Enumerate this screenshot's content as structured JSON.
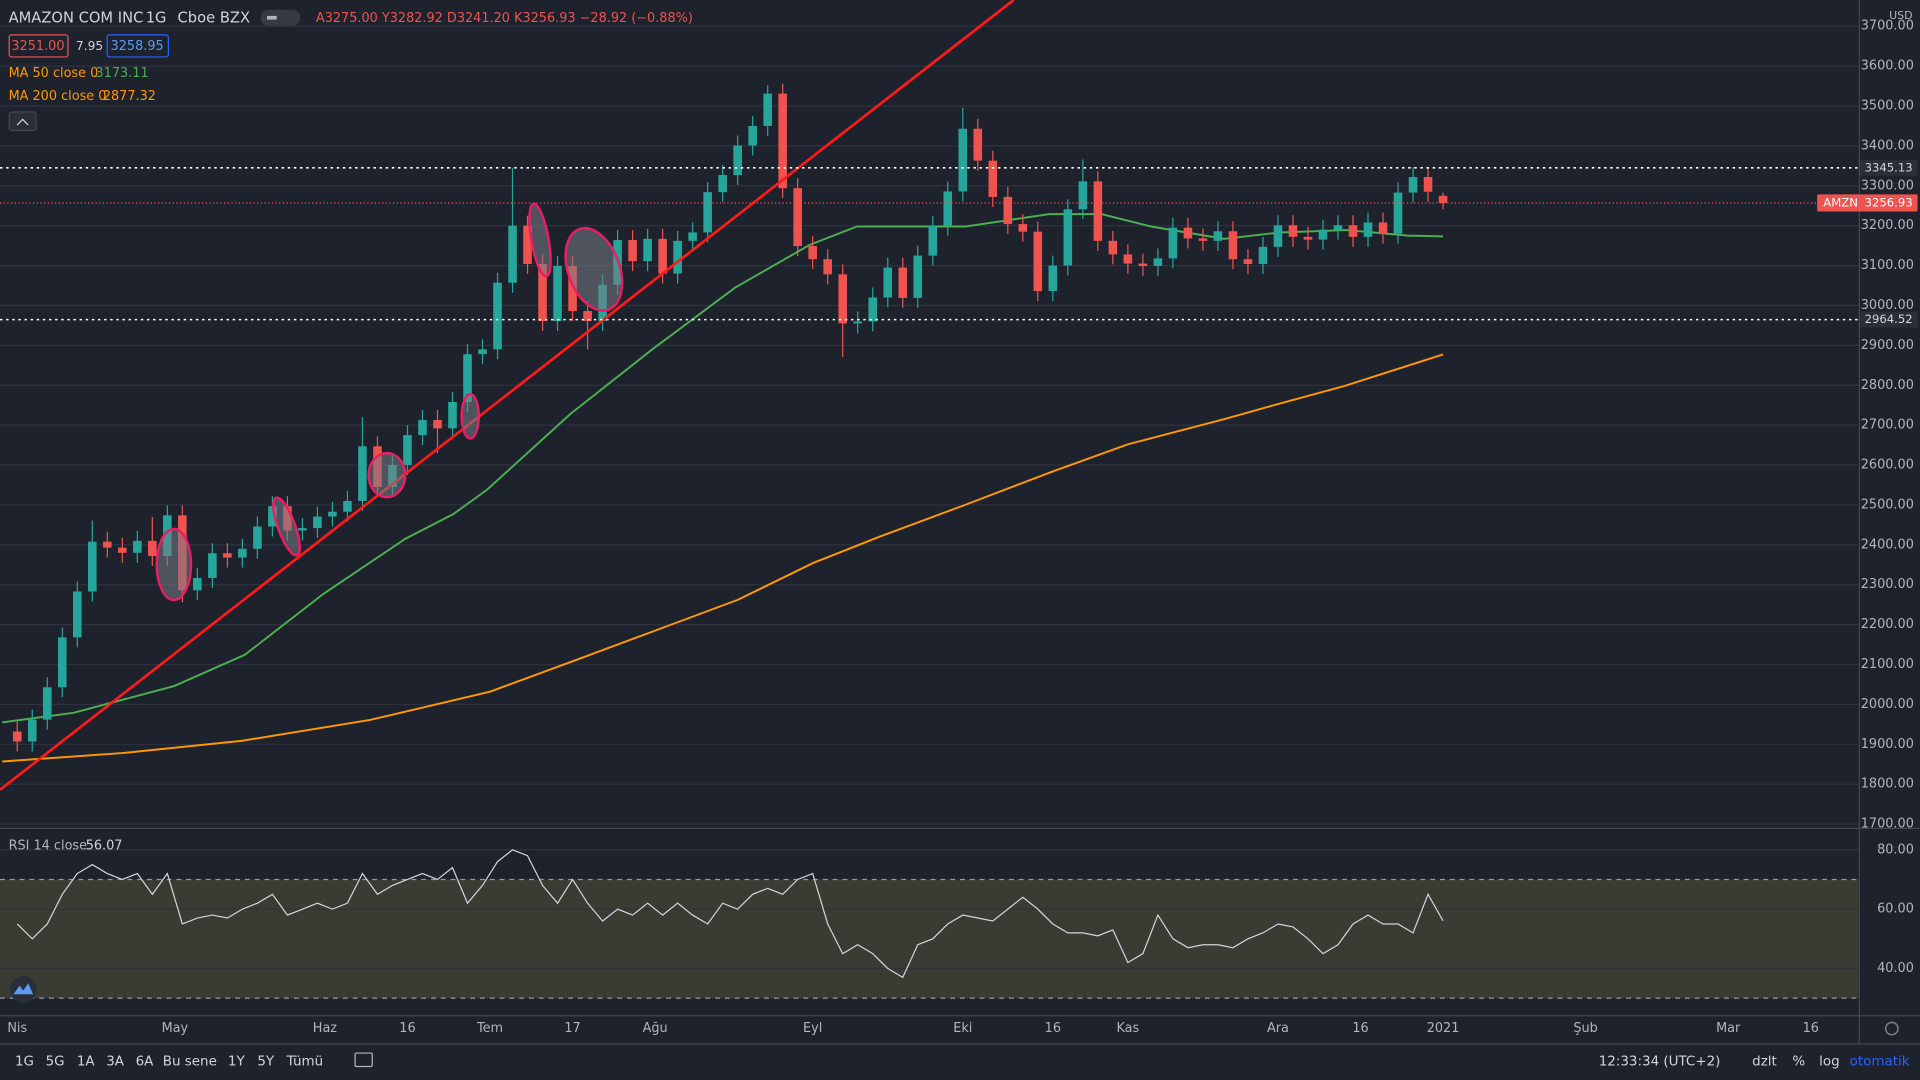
{
  "chart_data": {
    "type": "candlestick",
    "title": "AMAZON COM INC",
    "interval": "1G",
    "exchange": "Cboe BZX",
    "ohlc_text": "A3275.00 Y3282.92 D3241.20 K3256.93 −28.92 (−0.88%)",
    "quote": {
      "bid": "3251.00",
      "spread": "7.95",
      "ask": "3258.95"
    },
    "symbol": "AMZN",
    "currency": "USD",
    "up_color": "#26a69a",
    "down_color": "#ef5350",
    "x": [
      0,
      2,
      4,
      6,
      8,
      10,
      12,
      14,
      16,
      18,
      20,
      22,
      24,
      26,
      28,
      30,
      32,
      34,
      36,
      38,
      40,
      42,
      44,
      46,
      48,
      50,
      52,
      54,
      56,
      58,
      60,
      62,
      64,
      66,
      68,
      70,
      72,
      74,
      76,
      78,
      80,
      82,
      84,
      86,
      88,
      90,
      92,
      94,
      96,
      98,
      100,
      102,
      104,
      106,
      108,
      110,
      112,
      114,
      116,
      118,
      120,
      122,
      124,
      126,
      128,
      130,
      132,
      134,
      136,
      138,
      140,
      142,
      144,
      146,
      148,
      150,
      152,
      154,
      156,
      158,
      160,
      162,
      164,
      166,
      168,
      170,
      172,
      174,
      176,
      178,
      180,
      182,
      184,
      186,
      188,
      190
    ],
    "open": [
      1932,
      1907,
      1962,
      2043,
      2168,
      2283,
      2408,
      2393,
      2380,
      2410,
      2372,
      2474,
      2286,
      2317,
      2379,
      2368,
      2390,
      2446,
      2497,
      2436,
      2442,
      2471,
      2483,
      2510,
      2647,
      2545,
      2600,
      2675,
      2713,
      2692,
      2758,
      2878,
      2890,
      3057,
      3200,
      3104,
      2961,
      3099,
      2986,
      2961,
      3052,
      3164,
      3111,
      3167,
      3080,
      3162,
      3183,
      3284,
      3327,
      3401,
      3450,
      3531,
      3294,
      3149,
      3116,
      3078,
      2955,
      2960,
      3020,
      3095,
      3019,
      3125,
      3200,
      3286,
      3443,
      3363,
      3272,
      3204,
      3185,
      3036,
      3100,
      3241,
      3311,
      3162,
      3128,
      3105,
      3099,
      3118,
      3195,
      3168,
      3162,
      3186,
      3116,
      3104,
      3147,
      3201,
      3172,
      3165,
      3190,
      3201,
      3172,
      3208,
      3180,
      3283,
      3322,
      3275
    ],
    "high": [
      1957,
      1987,
      2068,
      2193,
      2308,
      2461,
      2433,
      2418,
      2435,
      2470,
      2499,
      2499,
      2342,
      2404,
      2404,
      2415,
      2471,
      2522,
      2522,
      2467,
      2496,
      2508,
      2535,
      2720,
      2672,
      2625,
      2700,
      2738,
      2738,
      2783,
      2903,
      2915,
      3082,
      3345,
      3225,
      3129,
      3124,
      3124,
      3011,
      3077,
      3189,
      3189,
      3192,
      3192,
      3187,
      3208,
      3309,
      3352,
      3426,
      3475,
      3552,
      3556,
      3319,
      3174,
      3141,
      3103,
      2985,
      3045,
      3120,
      3120,
      3150,
      3225,
      3311,
      3496,
      3468,
      3388,
      3297,
      3229,
      3210,
      3125,
      3266,
      3366,
      3336,
      3187,
      3153,
      3130,
      3143,
      3220,
      3220,
      3193,
      3211,
      3211,
      3141,
      3172,
      3226,
      3226,
      3197,
      3215,
      3226,
      3226,
      3233,
      3233,
      3308,
      3347,
      3347,
      3282.92
    ],
    "low": [
      1882,
      1882,
      1937,
      2018,
      2143,
      2258,
      2368,
      2355,
      2355,
      2347,
      2347,
      2256,
      2261,
      2292,
      2343,
      2343,
      2365,
      2421,
      2411,
      2411,
      2417,
      2446,
      2458,
      2485,
      2520,
      2520,
      2575,
      2650,
      2630,
      2667,
      2733,
      2853,
      2865,
      3032,
      3079,
      2936,
      2936,
      2961,
      2890,
      2936,
      3027,
      3086,
      3086,
      3055,
      3055,
      3137,
      3158,
      3259,
      3302,
      3376,
      3425,
      3269,
      3124,
      3091,
      3053,
      2871,
      2930,
      2935,
      2995,
      2994,
      2994,
      3100,
      3175,
      3261,
      3338,
      3247,
      3179,
      3160,
      3011,
      3011,
      3075,
      3216,
      3137,
      3103,
      3080,
      3074,
      3074,
      3093,
      3143,
      3137,
      3137,
      3091,
      3079,
      3079,
      3122,
      3147,
      3140,
      3140,
      3165,
      3147,
      3147,
      3155,
      3155,
      3258,
      3260,
      3241.2
    ],
    "close": [
      1907,
      1962,
      2043,
      2168,
      2283,
      2408,
      2393,
      2380,
      2410,
      2372,
      2474,
      2286,
      2317,
      2379,
      2368,
      2390,
      2446,
      2497,
      2436,
      2442,
      2471,
      2483,
      2510,
      2647,
      2545,
      2600,
      2675,
      2713,
      2692,
      2758,
      2878,
      2890,
      3057,
      3200,
      3104,
      2961,
      3099,
      2986,
      2961,
      3052,
      3164,
      3111,
      3167,
      3080,
      3162,
      3183,
      3284,
      3327,
      3401,
      3450,
      3531,
      3294,
      3149,
      3116,
      3078,
      2955,
      2960,
      3020,
      3095,
      3019,
      3125,
      3200,
      3286,
      3443,
      3363,
      3272,
      3204,
      3185,
      3036,
      3100,
      3241,
      3311,
      3162,
      3128,
      3105,
      3099,
      3118,
      3195,
      3168,
      3162,
      3186,
      3116,
      3104,
      3147,
      3201,
      3172,
      3165,
      3190,
      3201,
      3172,
      3208,
      3180,
      3283,
      3322,
      3285,
      3256.93
    ],
    "lines": [
      {
        "name": "MA 50 close 0",
        "color": "#4caf50",
        "label_color": "#ff9800",
        "x": [
          -2,
          7.5,
          20.9,
          30.3,
          40.8,
          51.7,
          58.1,
          62.6,
          73.7,
          84.7,
          95.6,
          105.6,
          111.9,
          126.4,
          137.5,
          144.5,
          151.1,
          160.8,
          168.2,
          177.2,
          185.3,
          190
        ],
        "values": [
          1955,
          1979,
          2046,
          2124,
          2277,
          2415,
          2477,
          2538,
          2728,
          2891,
          3044,
          3152,
          3198,
          3198,
          3229,
          3229,
          3198,
          3167,
          3183,
          3189,
          3175,
          3173.11
        ]
      },
      {
        "name": "MA 200 close 0",
        "color": "#ff9800",
        "label_color": "#ff9800",
        "x": [
          -2,
          14,
          30,
          47,
          63,
          74,
          85,
          96,
          106,
          115,
          126,
          138,
          148,
          161,
          168,
          177,
          190
        ],
        "values": [
          1857,
          1878,
          1909,
          1961,
          2032,
          2108,
          2185,
          2262,
          2354,
          2421,
          2498,
          2584,
          2652,
          2716,
          2753,
          2799,
          2877.32
        ]
      }
    ],
    "trendline": {
      "color": "#ff1a1a",
      "x": [
        -2.3,
        132.8
      ],
      "values": [
        1786,
        3766
      ]
    },
    "levels": [
      3345.13,
      2964.52
    ],
    "xlim": [
      -2.3,
      245.4
    ],
    "ylim": [
      1693.9,
      3765.7
    ],
    "yticks": [
      {
        "value": 1700,
        "label": "1700.00"
      },
      {
        "value": 1800,
        "label": "1800.00"
      },
      {
        "value": 1900,
        "label": "1900.00"
      },
      {
        "value": 2000,
        "label": "2000.00"
      },
      {
        "value": 2100,
        "label": "2100.00"
      },
      {
        "value": 2200,
        "label": "2200.00"
      },
      {
        "value": 2300,
        "label": "2300.00"
      },
      {
        "value": 2400,
        "label": "2400.00"
      },
      {
        "value": 2500,
        "label": "2500.00"
      },
      {
        "value": 2600,
        "label": "2600.00"
      },
      {
        "value": 2700,
        "label": "2700.00"
      },
      {
        "value": 2800,
        "label": "2800.00"
      },
      {
        "value": 2900,
        "label": "2900.00"
      },
      {
        "value": 3000,
        "label": "3000.00"
      },
      {
        "value": 3100,
        "label": "3100.00"
      },
      {
        "value": 3200,
        "label": "3200.00"
      },
      {
        "value": 3300,
        "label": "3300.00"
      },
      {
        "value": 3400,
        "label": "3400.00"
      },
      {
        "value": 3500,
        "label": "3500.00"
      },
      {
        "value": 3600,
        "label": "3600.00"
      },
      {
        "value": 3700,
        "label": "3700.00"
      }
    ],
    "xticks": [
      {
        "value": 0,
        "label": "Nis"
      },
      {
        "value": 21,
        "label": "May"
      },
      {
        "value": 41,
        "label": "Haz"
      },
      {
        "value": 52,
        "label": "16"
      },
      {
        "value": 63,
        "label": "Tem"
      },
      {
        "value": 74,
        "label": "17"
      },
      {
        "value": 85,
        "label": "Ağu"
      },
      {
        "value": 106,
        "label": "Eyl"
      },
      {
        "value": 126,
        "label": "Eki"
      },
      {
        "value": 138,
        "label": "16"
      },
      {
        "value": 148,
        "label": "Kas"
      },
      {
        "value": 168,
        "label": "Ara"
      },
      {
        "value": 179,
        "label": "16"
      },
      {
        "value": 190,
        "label": "2021"
      },
      {
        "value": 209,
        "label": "Şub"
      },
      {
        "value": 228,
        "label": "Mar"
      },
      {
        "value": 239,
        "label": "16"
      }
    ],
    "grid": true,
    "rsi": {
      "name": "RSI 14 close",
      "color": "#d1d4dc",
      "values": [
        55,
        50,
        55,
        65,
        72,
        75,
        72,
        70,
        72,
        65,
        72,
        55,
        57,
        58,
        57,
        60,
        62,
        65,
        58,
        60,
        62,
        60,
        62,
        72,
        65,
        68,
        70,
        72,
        70,
        74,
        62,
        68,
        76,
        80,
        78,
        68,
        62,
        70,
        62,
        56,
        60,
        58,
        62,
        58,
        62,
        58,
        55,
        62,
        60,
        65,
        67,
        65,
        70,
        72,
        55,
        45,
        48,
        45,
        40,
        37,
        48,
        50,
        55,
        58,
        57,
        56,
        60,
        64,
        60,
        55,
        52,
        52,
        51,
        53,
        42,
        45,
        58,
        50,
        47,
        48,
        48,
        47,
        50,
        52,
        55,
        54,
        50,
        45,
        48,
        55,
        58,
        55,
        55,
        52,
        65,
        56.07
      ],
      "ylim": [
        24.7,
        86.6
      ],
      "yticks": [
        {
          "value": 40,
          "label": "40.00"
        },
        {
          "value": 60,
          "label": "60.00"
        },
        {
          "value": 80,
          "label": "80.00"
        }
      ],
      "bands": [
        30,
        70
      ]
    }
  },
  "toolbar": {
    "ranges": [
      "1G",
      "5G",
      "1A",
      "3A",
      "6A",
      "Bu sene",
      "1Y",
      "5Y",
      "Tümü"
    ],
    "time": "12:33:34 (UTC+2)",
    "options": [
      "dzlt",
      "%",
      "log",
      "otomatik"
    ]
  }
}
